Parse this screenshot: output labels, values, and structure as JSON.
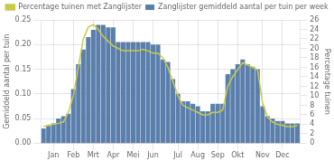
{
  "chart_data": {
    "type": "bar",
    "categories": [
      null,
      null,
      "Jan",
      null,
      null,
      null,
      "Feb",
      null,
      null,
      null,
      "Mrt",
      null,
      null,
      null,
      "Apr",
      null,
      null,
      null,
      "Mei",
      null,
      null,
      null,
      "Jun",
      null,
      null,
      null,
      null,
      "Jul",
      null,
      null,
      null,
      "Aug",
      null,
      null,
      null,
      "Sep",
      null,
      null,
      null,
      "Okt",
      null,
      null,
      null,
      null,
      "Nov",
      null,
      null,
      null,
      "Dec",
      null,
      null,
      null
    ],
    "ylabel": "Gemiddeld aantal per tuin",
    "y2label": "Percentage tuinen",
    "ylim": [
      0,
      0.25
    ],
    "yticks": [
      {
        "value": 0,
        "label": "0.00"
      },
      0.05,
      {
        "value": 0.1,
        "label": "0.10"
      },
      0.15,
      {
        "value": 0.2,
        "label": "0.20"
      },
      0.25
    ],
    "y2lim": [
      0,
      26
    ],
    "y2ticks": [
      0,
      2,
      4,
      6,
      8,
      10,
      12,
      14,
      16,
      18,
      20,
      22,
      24,
      26
    ],
    "grid": true,
    "legend": "top",
    "series": [
      {
        "name": "Zanglijster gemiddeld aantal per tuin per week",
        "type": "bar",
        "color": "#5b7fac",
        "values": [
          0.03,
          0.035,
          0.04,
          0.05,
          0.055,
          0.06,
          0.11,
          0.16,
          0.19,
          0.215,
          0.23,
          0.24,
          0.24,
          0.235,
          0.235,
          0.205,
          0.205,
          0.205,
          0.205,
          0.205,
          0.205,
          0.205,
          0.2,
          0.2,
          0.17,
          0.165,
          0.13,
          0.1,
          0.085,
          0.085,
          0.08,
          0.075,
          0.065,
          0.065,
          0.08,
          0.08,
          0.08,
          0.14,
          0.15,
          0.16,
          0.17,
          0.16,
          0.155,
          0.15,
          0.075,
          0.055,
          0.05,
          0.045,
          0.045,
          0.04,
          0.04,
          0.04
        ]
      },
      {
        "name": "Percentage tuinen met Zanglijster",
        "type": "line",
        "color": "#c8cc44",
        "axis": "y2",
        "values": [
          3.5,
          3.8,
          4.0,
          4.2,
          4.5,
          6.5,
          10.0,
          16.0,
          22.0,
          24.5,
          25.0,
          24.0,
          22.5,
          21.5,
          20.5,
          20.0,
          19.5,
          19.5,
          19.5,
          19.5,
          19.8,
          19.5,
          19.0,
          19.0,
          18.0,
          16.0,
          13.0,
          10.0,
          8.0,
          7.5,
          7.0,
          6.5,
          6.0,
          6.0,
          6.5,
          6.5,
          7.0,
          12.0,
          14.0,
          15.5,
          17.0,
          16.5,
          16.0,
          15.5,
          8.5,
          5.5,
          4.5,
          4.0,
          3.8,
          3.5,
          3.5,
          3.8
        ]
      }
    ]
  }
}
